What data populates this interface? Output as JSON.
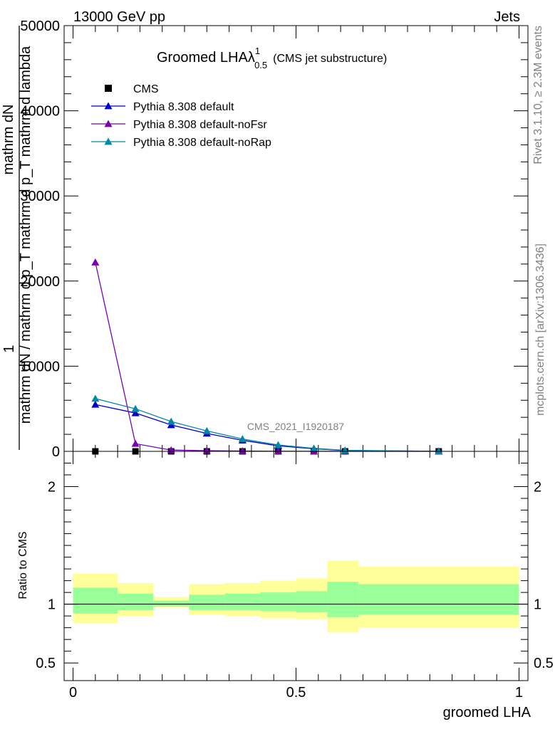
{
  "header": {
    "left": "13000 GeV pp",
    "right": "Jets",
    "watermark": "CMS_2021_I1920187"
  },
  "side_labels": {
    "top": "Rivet 3.1.10, ≥ 2.3M events",
    "bottom": "mcplots.cern.ch [arXiv:1306.3436]"
  },
  "colors": {
    "cms": "#000000",
    "default": "#0000cc",
    "noFsr": "#7a00b4",
    "noRap": "#0087a8",
    "band_outer": "#ffff99",
    "band_inner": "#99ff99"
  },
  "chart_data": [
    {
      "type": "line",
      "panel": "main",
      "title": "Groomed LHAλ",
      "title_sup": "1",
      "title_sub": "0.5",
      "title_note": "(CMS jet substructure)",
      "ylabel_top": "1",
      "ylabel_frac_num": "mathrm dN",
      "ylabel_frac_den": "mathrm dN / mathrm d p_T mathrm d p_T mathrm d lambda",
      "xlim": [
        -0.02,
        1.02
      ],
      "ylim": [
        0,
        50000
      ],
      "y_ticks": [
        0,
        10000,
        20000,
        30000,
        40000,
        50000
      ],
      "y_tick_labels": [
        "0",
        "10000",
        "20000",
        "30000",
        "40000",
        "50000"
      ],
      "legend_position": "top-left",
      "series": [
        {
          "name": "CMS",
          "marker": "square",
          "x": [
            0.05,
            0.14,
            0.22,
            0.3,
            0.38,
            0.46,
            0.54,
            0.61,
            0.82
          ],
          "y": [
            0,
            0,
            0,
            0,
            0,
            0,
            0,
            0,
            0
          ]
        },
        {
          "name": "Pythia 8.308 default",
          "marker": "triangle",
          "x": [
            0.05,
            0.14,
            0.22,
            0.3,
            0.38,
            0.46,
            0.54,
            0.61,
            0.82
          ],
          "y": [
            5500,
            4500,
            3100,
            2100,
            1300,
            650,
            300,
            100,
            10
          ]
        },
        {
          "name": "Pythia 8.308 default-noFsr",
          "marker": "triangle",
          "x": [
            0.05,
            0.14,
            0.22,
            0.3,
            0.38,
            0.46,
            0.54,
            0.61,
            0.82
          ],
          "y": [
            22200,
            900,
            150,
            80,
            40,
            20,
            10,
            5,
            1
          ]
        },
        {
          "name": "Pythia 8.308 default-noRap",
          "marker": "triangle",
          "x": [
            0.05,
            0.14,
            0.22,
            0.3,
            0.38,
            0.46,
            0.54,
            0.61,
            0.82
          ],
          "y": [
            6200,
            5000,
            3500,
            2400,
            1450,
            750,
            350,
            120,
            12
          ]
        }
      ]
    },
    {
      "type": "area",
      "panel": "ratio",
      "ylabel": "Ratio to CMS",
      "xlabel": "groomed LHA",
      "xlim": [
        -0.02,
        1.02
      ],
      "ylim": [
        0.35,
        2.3
      ],
      "y_ticks": [
        0.5,
        1,
        2
      ],
      "y_tick_labels": [
        "0.5",
        "1",
        "2"
      ],
      "x_ticks": [
        0,
        0.5,
        1
      ],
      "x_tick_labels": [
        "0",
        "0.5",
        "1"
      ],
      "reference": 1,
      "bins": [
        {
          "x0": 0.0,
          "x1": 0.1,
          "outer": [
            0.84,
            1.26
          ],
          "inner": [
            0.92,
            1.14
          ]
        },
        {
          "x0": 0.1,
          "x1": 0.18,
          "outer": [
            0.9,
            1.18
          ],
          "inner": [
            0.95,
            1.09
          ]
        },
        {
          "x0": 0.18,
          "x1": 0.26,
          "outer": [
            0.97,
            1.06
          ],
          "inner": [
            0.98,
            1.03
          ]
        },
        {
          "x0": 0.26,
          "x1": 0.34,
          "outer": [
            0.91,
            1.17
          ],
          "inner": [
            0.95,
            1.08
          ]
        },
        {
          "x0": 0.34,
          "x1": 0.42,
          "outer": [
            0.9,
            1.18
          ],
          "inner": [
            0.95,
            1.09
          ]
        },
        {
          "x0": 0.42,
          "x1": 0.5,
          "outer": [
            0.88,
            1.2
          ],
          "inner": [
            0.94,
            1.1
          ]
        },
        {
          "x0": 0.5,
          "x1": 0.57,
          "outer": [
            0.87,
            1.22
          ],
          "inner": [
            0.93,
            1.11
          ]
        },
        {
          "x0": 0.57,
          "x1": 0.64,
          "outer": [
            0.76,
            1.37
          ],
          "inner": [
            0.89,
            1.19
          ]
        },
        {
          "x0": 0.64,
          "x1": 1.0,
          "outer": [
            0.8,
            1.32
          ],
          "inner": [
            0.91,
            1.17
          ]
        }
      ]
    }
  ]
}
